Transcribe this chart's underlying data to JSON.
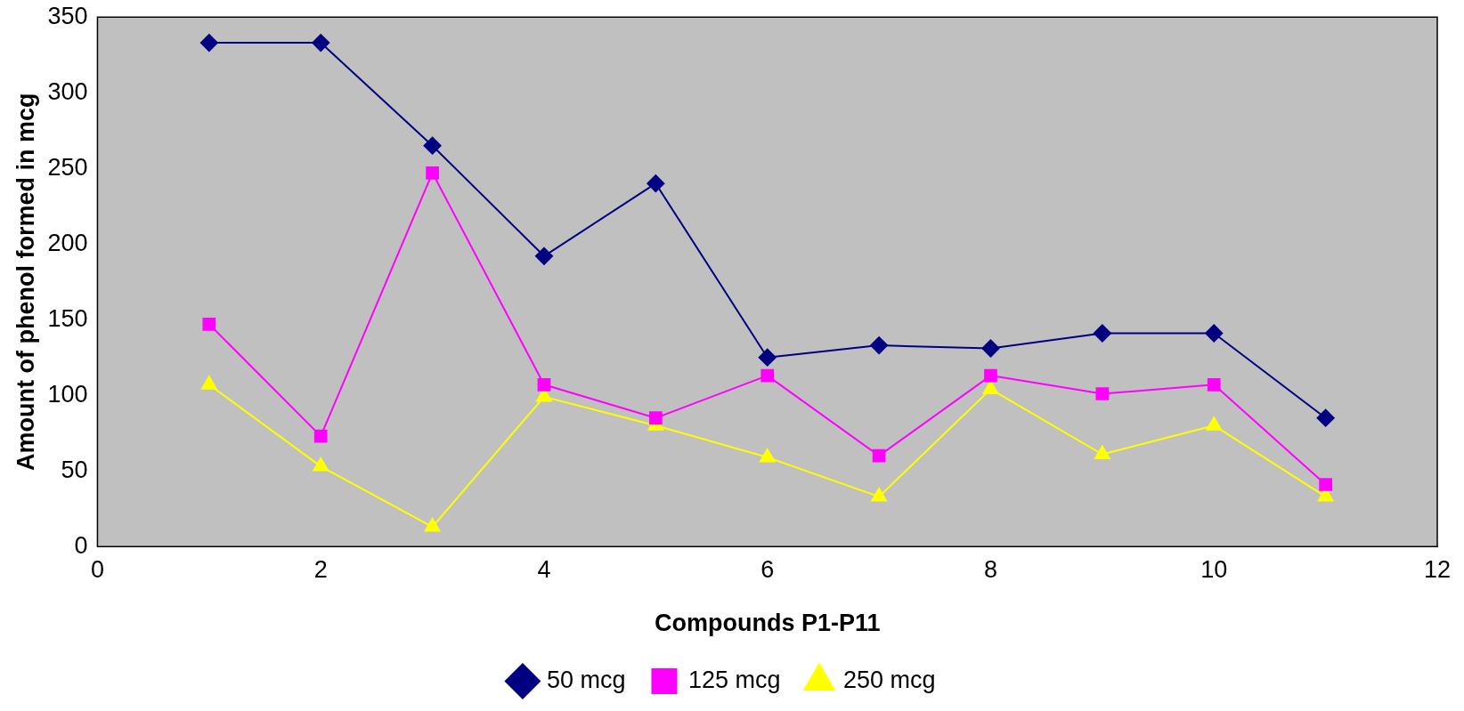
{
  "chart_data": {
    "type": "line",
    "xlabel": "Compounds P1-P11",
    "ylabel": "Amount of phenol formed in mcg",
    "x": [
      1,
      2,
      3,
      4,
      5,
      6,
      7,
      8,
      9,
      10,
      11
    ],
    "series": [
      {
        "name": "50 mcg",
        "color": "#000080",
        "marker": "diamond",
        "values": [
          333,
          333,
          265,
          192,
          240,
          125,
          133,
          131,
          141,
          141,
          85
        ]
      },
      {
        "name": "125 mcg",
        "color": "#ff00ff",
        "marker": "square",
        "values": [
          147,
          73,
          247,
          107,
          85,
          113,
          60,
          113,
          101,
          107,
          41
        ]
      },
      {
        "name": "250 mcg",
        "color": "#ffff00",
        "marker": "triangle",
        "values": [
          107,
          53,
          13,
          99,
          80,
          59,
          33,
          104,
          61,
          80,
          33
        ]
      }
    ],
    "xlim": [
      0,
      12
    ],
    "xticks": [
      0,
      2,
      4,
      6,
      8,
      10,
      12
    ],
    "ylim": [
      0,
      350
    ],
    "yticks": [
      0,
      50,
      100,
      150,
      200,
      250,
      300,
      350
    ],
    "grid": false,
    "legend": "bottom",
    "line_style": "solid"
  }
}
